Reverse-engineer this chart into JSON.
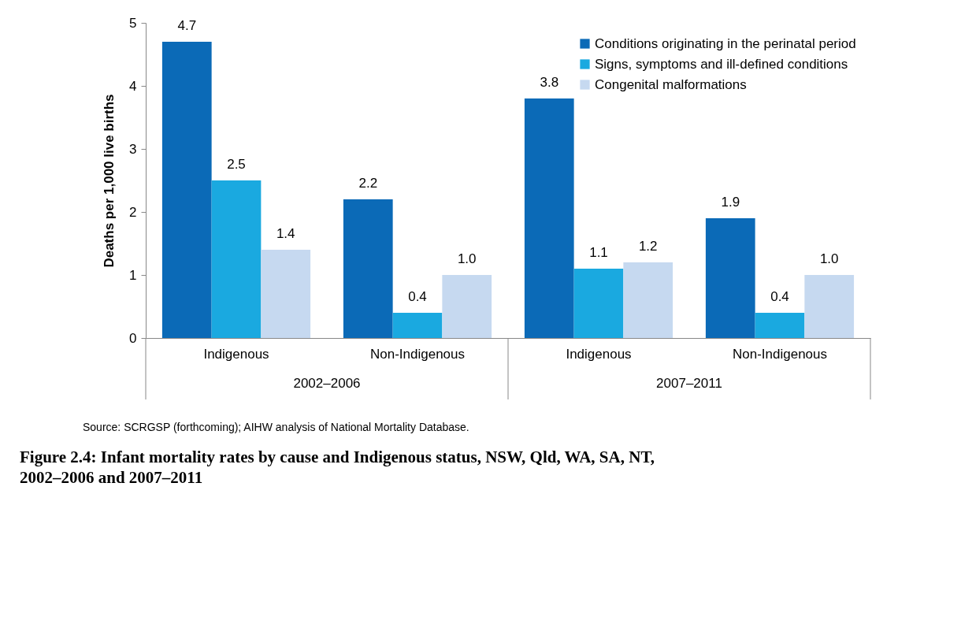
{
  "chart_data": {
    "type": "bar",
    "title": "Figure 2.4: Infant mortality rates by cause and Indigenous status, NSW, Qld, WA, SA, NT, 2002–2006 and 2007–2011",
    "ylabel": "Deaths per 1,000 live births",
    "categories": [
      "Indigenous",
      "Non-Indigenous",
      "Indigenous",
      "Non-Indigenous"
    ],
    "series": [
      {
        "name": "Conditions originating in the perinatal period",
        "color": "#0b6ab7",
        "values": [
          4.7,
          2.2,
          3.8,
          1.9
        ],
        "value_labels": [
          "4.7",
          "2.2",
          "3.8",
          "1.9"
        ]
      },
      {
        "name": "Signs, symptoms and ill-defined conditions",
        "color": "#1aa9e0",
        "values": [
          2.5,
          0.4,
          1.1,
          0.4
        ],
        "value_labels": [
          "2.5",
          "0.4",
          "1.1",
          "0.4"
        ]
      },
      {
        "name": "Congenital malformations",
        "color": "#c6d9f0",
        "values": [
          1.4,
          1.0,
          1.2,
          1.0
        ],
        "value_labels": [
          "1.4",
          "1.0",
          "1.2",
          "1.0"
        ]
      }
    ],
    "ylim": [
      0,
      5
    ],
    "yticks": [
      0,
      1,
      2,
      3,
      4,
      5
    ],
    "grid": false,
    "legend": "top right",
    "annotations": [
      "2002–2006",
      "2007–2011",
      "Source: SCRGSP (forthcoming); AIHW analysis of National Mortality Database."
    ]
  }
}
